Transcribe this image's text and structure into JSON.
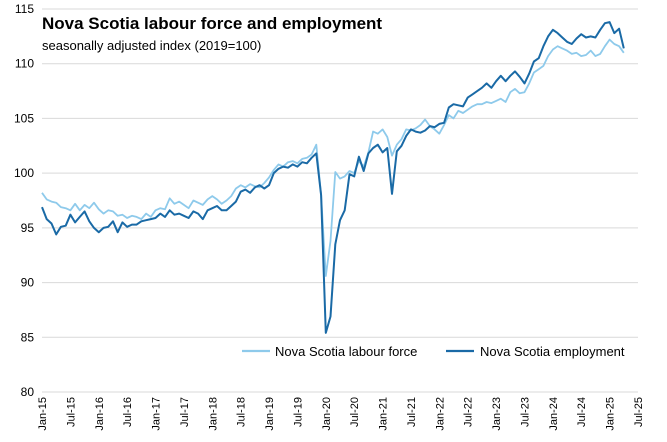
{
  "chart_data": {
    "type": "line",
    "title": "Nova Scotia labour force and employment",
    "subtitle": "seasonally adjusted index (2019=100)",
    "ylim": [
      80,
      115
    ],
    "yticks": [
      80,
      85,
      90,
      95,
      100,
      105,
      110,
      115
    ],
    "grid": true,
    "legend_position": "bottom-right",
    "x_start": "2015-01",
    "x_end": "2025-07",
    "xtick_labels": [
      "Jan-15",
      "Jul-15",
      "Jan-16",
      "Jul-16",
      "Jan-17",
      "Jul-17",
      "Jan-18",
      "Jul-18",
      "Jan-19",
      "Jul-19",
      "Jan-20",
      "Jul-20",
      "Jan-21",
      "Jul-21",
      "Jan-22",
      "Jul-22",
      "Jan-23",
      "Jul-23",
      "Jan-24",
      "Jul-24",
      "Jan-25",
      "Jul-25"
    ],
    "series": [
      {
        "name": "Nova Scotia labour force",
        "color": "#8ECAEB",
        "values": [
          98.2,
          97.6,
          97.4,
          97.3,
          96.9,
          96.8,
          96.6,
          97.2,
          96.6,
          97.1,
          96.8,
          97.3,
          96.7,
          96.3,
          96.6,
          96.5,
          96.1,
          96.2,
          95.9,
          96.1,
          96.0,
          95.8,
          96.3,
          96.0,
          96.6,
          96.8,
          96.7,
          97.7,
          97.2,
          97.4,
          97.1,
          96.8,
          97.5,
          97.3,
          97.1,
          97.6,
          97.9,
          97.6,
          97.2,
          97.5,
          97.9,
          98.6,
          98.9,
          98.7,
          99.0,
          98.8,
          98.7,
          99.1,
          99.6,
          100.3,
          100.8,
          100.6,
          101.0,
          101.1,
          100.9,
          101.3,
          101.4,
          101.7,
          102.6,
          98.0,
          90.6,
          93.8,
          100.1,
          99.5,
          99.7,
          100.2,
          100.0,
          101.1,
          100.6,
          101.9,
          103.8,
          103.6,
          104.0,
          103.3,
          101.6,
          102.6,
          103.1,
          104.0,
          103.9,
          104.1,
          104.4,
          104.9,
          104.3,
          104.0,
          103.6,
          104.4,
          105.3,
          105.0,
          105.7,
          105.5,
          105.8,
          106.1,
          106.3,
          106.3,
          106.5,
          106.4,
          106.6,
          106.8,
          106.5,
          107.4,
          107.7,
          107.3,
          107.4,
          108.2,
          109.2,
          109.5,
          109.8,
          110.7,
          111.3,
          111.6,
          111.4,
          111.2,
          110.9,
          111.0,
          110.7,
          110.8,
          111.2,
          110.7,
          110.9,
          111.6,
          112.2,
          111.8,
          111.6,
          111.0
        ]
      },
      {
        "name": "Nova Scotia employment",
        "color": "#1A6AA6",
        "values": [
          96.9,
          95.8,
          95.4,
          94.4,
          95.1,
          95.2,
          96.2,
          95.5,
          96.0,
          96.5,
          95.6,
          95.0,
          94.6,
          95.0,
          95.1,
          95.6,
          94.6,
          95.5,
          95.1,
          95.3,
          95.3,
          95.6,
          95.7,
          95.8,
          95.9,
          96.3,
          96.0,
          96.6,
          96.2,
          96.3,
          96.1,
          95.9,
          96.5,
          96.3,
          95.8,
          96.6,
          96.8,
          97.0,
          96.6,
          96.6,
          97.0,
          97.4,
          98.3,
          98.5,
          98.2,
          98.7,
          98.9,
          98.6,
          98.9,
          100.0,
          100.4,
          100.6,
          100.5,
          100.8,
          100.6,
          101.0,
          100.9,
          101.4,
          101.8,
          98.0,
          85.4,
          86.9,
          93.5,
          95.7,
          96.6,
          99.9,
          99.7,
          101.5,
          100.2,
          101.8,
          102.3,
          102.6,
          101.9,
          102.3,
          98.1,
          102.0,
          102.5,
          103.4,
          104.0,
          103.8,
          103.7,
          103.9,
          104.3,
          104.2,
          104.5,
          104.6,
          106.0,
          106.3,
          106.2,
          106.1,
          106.9,
          107.2,
          107.5,
          107.8,
          108.2,
          107.8,
          108.4,
          108.9,
          108.4,
          108.9,
          109.3,
          108.8,
          108.2,
          109.1,
          110.2,
          110.5,
          111.6,
          112.5,
          113.1,
          112.8,
          112.4,
          112.0,
          111.8,
          112.3,
          112.7,
          112.4,
          112.5,
          112.4,
          113.1,
          113.7,
          113.8,
          112.8,
          113.2,
          111.4
        ]
      }
    ]
  }
}
